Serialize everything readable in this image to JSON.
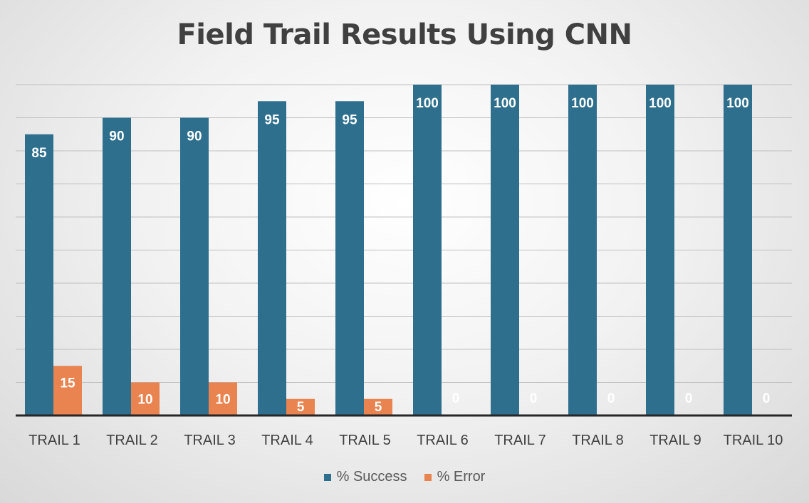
{
  "chart_data": {
    "type": "bar",
    "title": "Field Trail Results Using CNN",
    "xlabel": "",
    "ylabel": "",
    "ylim": [
      0,
      100
    ],
    "grid": true,
    "legend_position": "bottom",
    "categories": [
      "TRAIL 1",
      "TRAIL 2",
      "TRAIL 3",
      "TRAIL 4",
      "TRAIL 5",
      "TRAIL 6",
      "TRAIL 7",
      "TRAIL 8",
      "TRAIL 9",
      "TRAIL 10"
    ],
    "series": [
      {
        "name": "% Success",
        "color": "#2e6f8e",
        "values": [
          85,
          90,
          90,
          95,
          95,
          100,
          100,
          100,
          100,
          100
        ]
      },
      {
        "name": "% Error",
        "color": "#e9834f",
        "values": [
          15,
          10,
          10,
          5,
          5,
          0,
          0,
          0,
          0,
          0
        ]
      }
    ]
  }
}
